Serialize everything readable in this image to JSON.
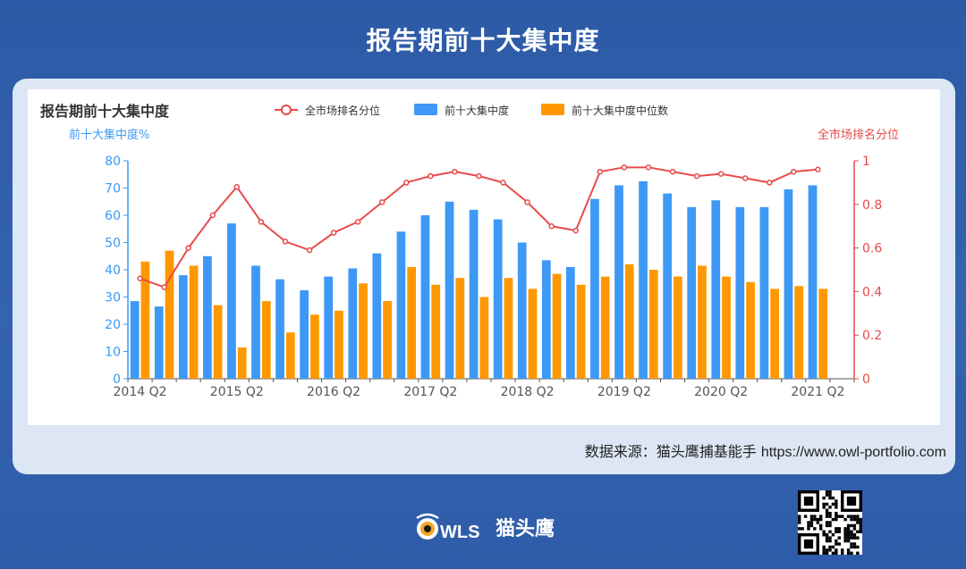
{
  "page": {
    "title": "报告期前十大集中度",
    "source_prefix": "数据来源：猫头鹰捕基能手",
    "source_url": "https://www.owl-portfolio.com",
    "brand_name": "猫头鹰",
    "brand_logo_text": "WLS"
  },
  "colors": {
    "bar_top10": "#3d99f5",
    "bar_median": "#ff9800",
    "line_rank": "#e84a4a",
    "left_axis": "#3d99f5",
    "right_axis": "#e84a4a"
  },
  "chart_data": {
    "type": "bar",
    "title": "报告期前十大集中度",
    "ylabel_left": "前十大集中度%",
    "ylabel_right": "全市场排名分位",
    "ylim_left": [
      0,
      80
    ],
    "yticks_left": [
      0,
      10,
      20,
      30,
      40,
      50,
      60,
      70,
      80
    ],
    "ylim_right": [
      0,
      1
    ],
    "yticks_right": [
      0,
      0.2,
      0.4,
      0.6,
      0.8,
      1
    ],
    "xtick_labels": [
      "2014 Q2",
      "2015 Q2",
      "2016 Q2",
      "2017 Q2",
      "2018 Q2",
      "2019 Q2",
      "2020 Q2",
      "2021 Q2"
    ],
    "legend_position": "top",
    "categories": [
      "2014Q2",
      "2014Q3",
      "2014Q4",
      "2015Q1",
      "2015Q2",
      "2015Q3",
      "2015Q4",
      "2016Q1",
      "2016Q2",
      "2016Q3",
      "2016Q4",
      "2017Q1",
      "2017Q2",
      "2017Q3",
      "2017Q4",
      "2018Q1",
      "2018Q2",
      "2018Q3",
      "2018Q4",
      "2019Q1",
      "2019Q2",
      "2019Q3",
      "2019Q4",
      "2020Q1",
      "2020Q2",
      "2020Q3",
      "2020Q4",
      "2021Q1",
      "2021Q2",
      "2021Q3"
    ],
    "series": [
      {
        "name": "全市场排名分位",
        "kind": "line",
        "axis": "right",
        "values": [
          0.46,
          0.42,
          0.6,
          0.75,
          0.88,
          0.72,
          0.63,
          0.59,
          0.67,
          0.72,
          0.81,
          0.9,
          0.93,
          0.95,
          0.93,
          0.9,
          0.81,
          0.7,
          0.68,
          0.95,
          0.97,
          0.97,
          0.95,
          0.93,
          0.94,
          0.92,
          0.9,
          0.95,
          0.96,
          null
        ]
      },
      {
        "name": "前十大集中度",
        "kind": "bar",
        "axis": "left",
        "values": [
          28.5,
          26.5,
          38,
          45,
          57,
          41.5,
          36.5,
          32.5,
          37.5,
          40.5,
          46,
          54,
          60,
          65,
          62,
          58.5,
          50,
          43.5,
          41,
          66,
          71,
          72.5,
          68,
          63,
          65.5,
          63,
          63,
          69.5,
          71,
          null
        ]
      },
      {
        "name": "前十大集中度中位数",
        "kind": "bar",
        "axis": "left",
        "values": [
          43,
          47,
          41.5,
          27,
          11.5,
          28.5,
          17,
          23.5,
          25,
          35,
          28.5,
          41,
          34.5,
          37,
          30,
          37,
          33,
          38.5,
          34.5,
          37.5,
          42,
          40,
          37.5,
          41.5,
          37.5,
          35.5,
          33,
          34,
          33,
          null
        ]
      }
    ]
  }
}
